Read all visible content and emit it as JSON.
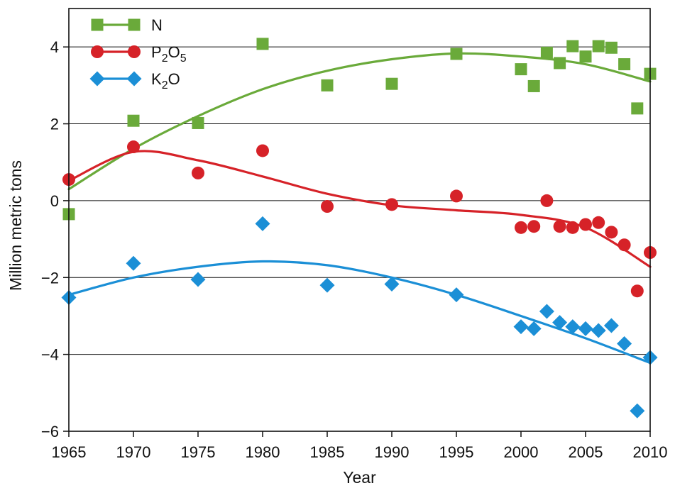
{
  "chart_data": {
    "type": "scatter",
    "title": "",
    "xlabel": "Year",
    "ylabel": "Million metric tons",
    "xlim": [
      1965,
      2010
    ],
    "ylim": [
      -6,
      5
    ],
    "x_ticks": [
      "1965",
      "1970",
      "1975",
      "1980",
      "1985",
      "1990",
      "1995",
      "2000",
      "2005",
      "2010"
    ],
    "y_ticks": [
      "4",
      "2",
      "0",
      "−2",
      "−4",
      "−6"
    ],
    "grid": "horizontal",
    "legend_position": "top-left",
    "series": [
      {
        "name": "N",
        "name_base": "N",
        "name_sub": "",
        "name_base2": "",
        "name_sub2": "",
        "marker": "square",
        "color": "#6aaa3a",
        "points": [
          [
            1965,
            -0.35
          ],
          [
            1970,
            2.08
          ],
          [
            1975,
            2.02
          ],
          [
            1980,
            4.08
          ],
          [
            1985,
            3.0
          ],
          [
            1990,
            3.04
          ],
          [
            1995,
            3.82
          ],
          [
            2000,
            3.42
          ],
          [
            2001,
            2.98
          ],
          [
            2002,
            3.85
          ],
          [
            2003,
            3.58
          ],
          [
            2004,
            4.02
          ],
          [
            2005,
            3.75
          ],
          [
            2006,
            4.02
          ],
          [
            2007,
            3.98
          ],
          [
            2008,
            3.55
          ],
          [
            2009,
            2.4
          ],
          [
            2010,
            3.3
          ]
        ],
        "trend": [
          [
            1965,
            0.3
          ],
          [
            1970,
            1.35
          ],
          [
            1975,
            2.2
          ],
          [
            1980,
            2.9
          ],
          [
            1985,
            3.38
          ],
          [
            1990,
            3.68
          ],
          [
            1995,
            3.83
          ],
          [
            2000,
            3.75
          ],
          [
            2005,
            3.55
          ],
          [
            2010,
            3.1
          ]
        ]
      },
      {
        "name": "P₂O₅",
        "name_base": "P",
        "name_sub": "2",
        "name_base2": "O",
        "name_sub2": "5",
        "marker": "circle",
        "color": "#d62228",
        "points": [
          [
            1965,
            0.55
          ],
          [
            1970,
            1.4
          ],
          [
            1975,
            0.72
          ],
          [
            1980,
            1.3
          ],
          [
            1985,
            -0.15
          ],
          [
            1990,
            -0.1
          ],
          [
            1995,
            0.12
          ],
          [
            2000,
            -0.7
          ],
          [
            2001,
            -0.67
          ],
          [
            2002,
            0.0
          ],
          [
            2003,
            -0.67
          ],
          [
            2004,
            -0.7
          ],
          [
            2005,
            -0.62
          ],
          [
            2006,
            -0.57
          ],
          [
            2007,
            -0.82
          ],
          [
            2008,
            -1.15
          ],
          [
            2009,
            -2.35
          ],
          [
            2010,
            -1.35
          ]
        ],
        "trend": [
          [
            1965,
            0.52
          ],
          [
            1970,
            1.27
          ],
          [
            1975,
            1.05
          ],
          [
            1980,
            0.63
          ],
          [
            1985,
            0.18
          ],
          [
            1990,
            -0.12
          ],
          [
            1995,
            -0.25
          ],
          [
            2000,
            -0.37
          ],
          [
            2005,
            -0.7
          ],
          [
            2010,
            -1.72
          ]
        ]
      },
      {
        "name": "K₂O",
        "name_base": "K",
        "name_sub": "2",
        "name_base2": "O",
        "name_sub2": "",
        "marker": "diamond",
        "color": "#1b8fd6",
        "points": [
          [
            1965,
            -2.52
          ],
          [
            1970,
            -1.63
          ],
          [
            1975,
            -2.05
          ],
          [
            1980,
            -0.6
          ],
          [
            1985,
            -2.2
          ],
          [
            1990,
            -2.17
          ],
          [
            1995,
            -2.45
          ],
          [
            2000,
            -3.28
          ],
          [
            2001,
            -3.33
          ],
          [
            2002,
            -2.88
          ],
          [
            2003,
            -3.17
          ],
          [
            2004,
            -3.28
          ],
          [
            2005,
            -3.33
          ],
          [
            2006,
            -3.38
          ],
          [
            2007,
            -3.25
          ],
          [
            2008,
            -3.72
          ],
          [
            2009,
            -5.47
          ],
          [
            2010,
            -4.08
          ]
        ],
        "trend": [
          [
            1965,
            -2.45
          ],
          [
            1970,
            -2.0
          ],
          [
            1975,
            -1.72
          ],
          [
            1980,
            -1.58
          ],
          [
            1985,
            -1.68
          ],
          [
            1990,
            -2.0
          ],
          [
            1995,
            -2.45
          ],
          [
            2000,
            -3.0
          ],
          [
            2005,
            -3.58
          ],
          [
            2010,
            -4.22
          ]
        ]
      }
    ]
  }
}
